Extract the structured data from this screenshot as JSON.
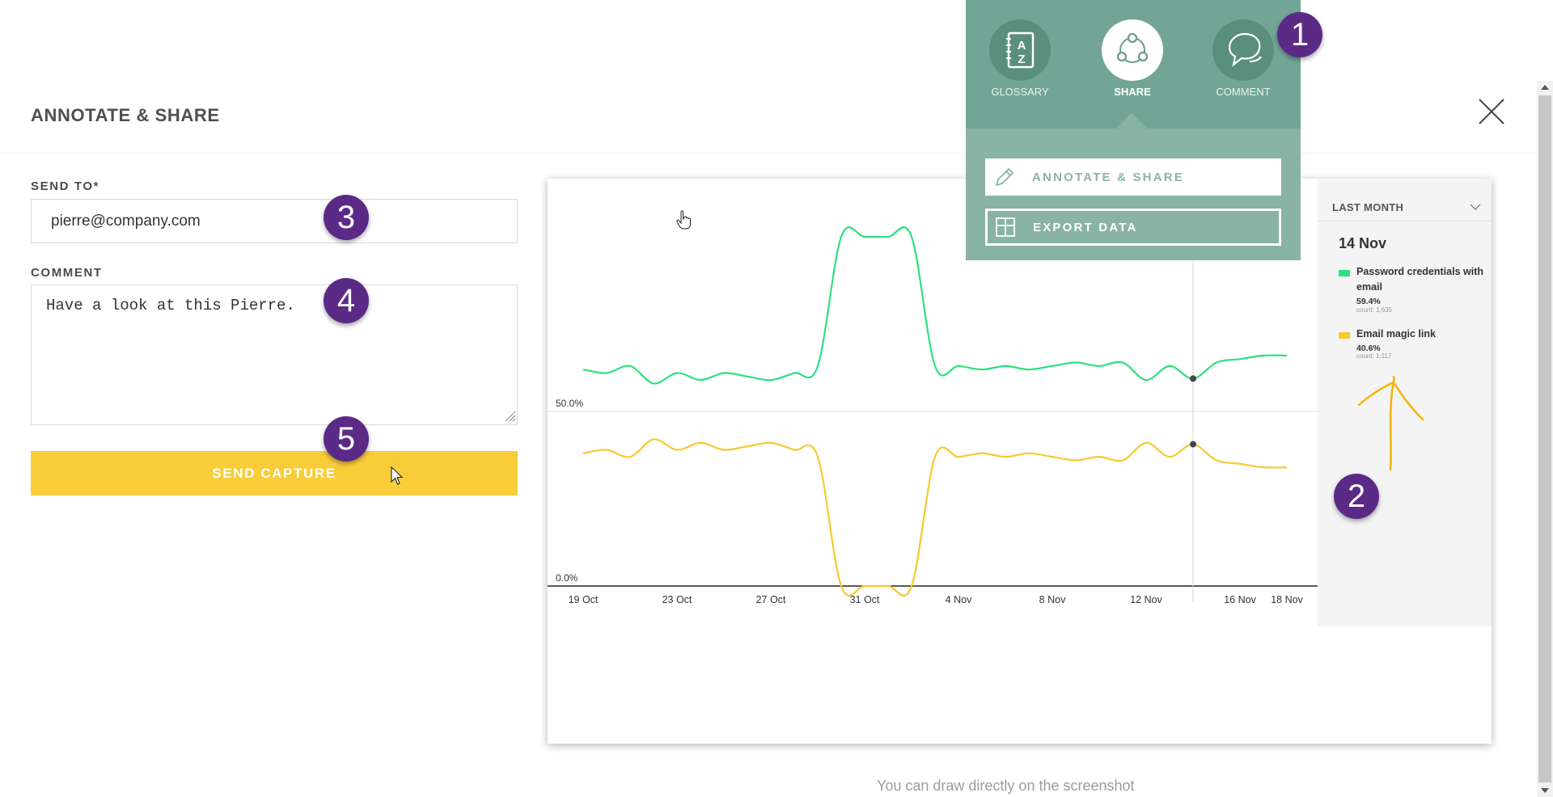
{
  "header": {
    "title": "ANNOTATE & SHARE"
  },
  "form": {
    "send_to": {
      "label": "SEND TO*",
      "value": "pierre@company.com"
    },
    "comment": {
      "label": "COMMENT",
      "value": "Have a look at this Pierre."
    },
    "submit_label": "SEND CAPTURE"
  },
  "share_menu": {
    "items": [
      {
        "label": "GLOSSARY",
        "icon": "glossary-book-icon"
      },
      {
        "label": "SHARE",
        "icon": "share-network-icon",
        "active": true
      },
      {
        "label": "COMMENT",
        "icon": "speech-bubbles-icon"
      }
    ],
    "options": [
      {
        "label": "ANNOTATE & SHARE",
        "icon": "pencil-icon"
      },
      {
        "label": "EXPORT DATA",
        "icon": "table-icon"
      }
    ]
  },
  "legend": {
    "range_label": "LAST MONTH",
    "date": "14 Nov",
    "entries": [
      {
        "name": "Password credentials with email",
        "percent": "59.4%",
        "count": "count: 1,635",
        "color": "#2ee07e"
      },
      {
        "name": "Email magic link",
        "percent": "40.6%",
        "count": "count: 1,117",
        "color": "#f9c830"
      }
    ]
  },
  "badges": [
    "1",
    "2",
    "3",
    "4",
    "5"
  ],
  "hint": "You can draw directly on the screenshot",
  "colors": {
    "accent": "#f9cd3a",
    "menu": "#73a596",
    "badge": "#5b2a87",
    "annotation": "#f4b400"
  },
  "chart_data": {
    "type": "line",
    "x": [
      "19 Oct",
      "20 Oct",
      "21 Oct",
      "22 Oct",
      "23 Oct",
      "24 Oct",
      "25 Oct",
      "26 Oct",
      "27 Oct",
      "28 Oct",
      "29 Oct",
      "30 Oct",
      "31 Oct",
      "1 Nov",
      "2 Nov",
      "3 Nov",
      "4 Nov",
      "5 Nov",
      "6 Nov",
      "7 Nov",
      "8 Nov",
      "9 Nov",
      "10 Nov",
      "11 Nov",
      "12 Nov",
      "13 Nov",
      "14 Nov",
      "15 Nov",
      "16 Nov",
      "17 Nov",
      "18 Nov"
    ],
    "tick_labels": [
      "19 Oct",
      "23 Oct",
      "27 Oct",
      "31 Oct",
      "4 Nov",
      "8 Nov",
      "12 Nov",
      "16 Nov",
      "18 Nov"
    ],
    "y_tick_labels": [
      "0.0%",
      "50.0%"
    ],
    "ylim": [
      0,
      100
    ],
    "series": [
      {
        "name": "Password credentials with email",
        "color": "#2ee07e",
        "values": [
          62,
          61,
          63,
          58,
          61,
          59,
          61,
          60,
          59,
          61,
          63,
          100,
          100,
          100,
          100,
          63,
          63,
          62,
          63,
          62,
          63,
          64,
          63,
          64,
          59,
          63,
          59.4,
          64,
          65,
          66,
          66
        ]
      },
      {
        "name": "Email magic link",
        "color": "#f9c830",
        "values": [
          38,
          39,
          37,
          42,
          39,
          41,
          39,
          40,
          41,
          39,
          37,
          0,
          0,
          0,
          0,
          37,
          37,
          38,
          37,
          38,
          37,
          36,
          37,
          36,
          41,
          37,
          40.6,
          36,
          35,
          34,
          34
        ]
      }
    ],
    "highlight": {
      "x": "14 Nov"
    },
    "grid": false,
    "legend": "right"
  }
}
